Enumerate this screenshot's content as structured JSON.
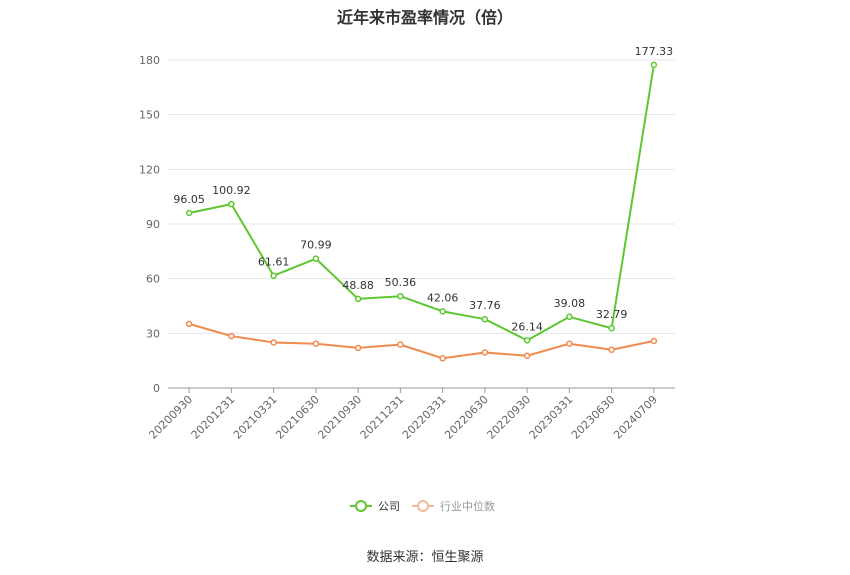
{
  "title": "近年来市盈率情况（倍）",
  "source": "数据来源：恒生聚源",
  "chart_data": {
    "type": "line",
    "title": "近年来市盈率情况（倍）",
    "categories": [
      "20200930",
      "20201231",
      "20210331",
      "20210630",
      "20210930",
      "20211231",
      "20220331",
      "20220630",
      "20220930",
      "20230331",
      "20230630",
      "20240709"
    ],
    "ylim": [
      0,
      180
    ],
    "yticks": [
      0,
      30,
      60,
      90,
      120,
      150,
      180
    ],
    "grid": true,
    "legend_position": "bottom",
    "series": [
      {
        "name": "公司",
        "color": "#5ec730",
        "values": [
          96.05,
          100.92,
          61.61,
          70.99,
          48.88,
          50.36,
          42.06,
          37.76,
          26.14,
          39.08,
          32.79,
          177.33
        ],
        "labels": [
          "96.05",
          "100.92",
          "61.61",
          "70.99",
          "48.88",
          "50.36",
          "42.06",
          "37.76",
          "26.14",
          "39.08",
          "32.79",
          "177.33"
        ]
      },
      {
        "name": "行业中位数",
        "color": "#f08a4f",
        "values": [
          35.2,
          28.5,
          25.0,
          24.3,
          22.0,
          23.8,
          16.3,
          19.5,
          17.7,
          24.3,
          21.0,
          25.8
        ]
      }
    ]
  }
}
